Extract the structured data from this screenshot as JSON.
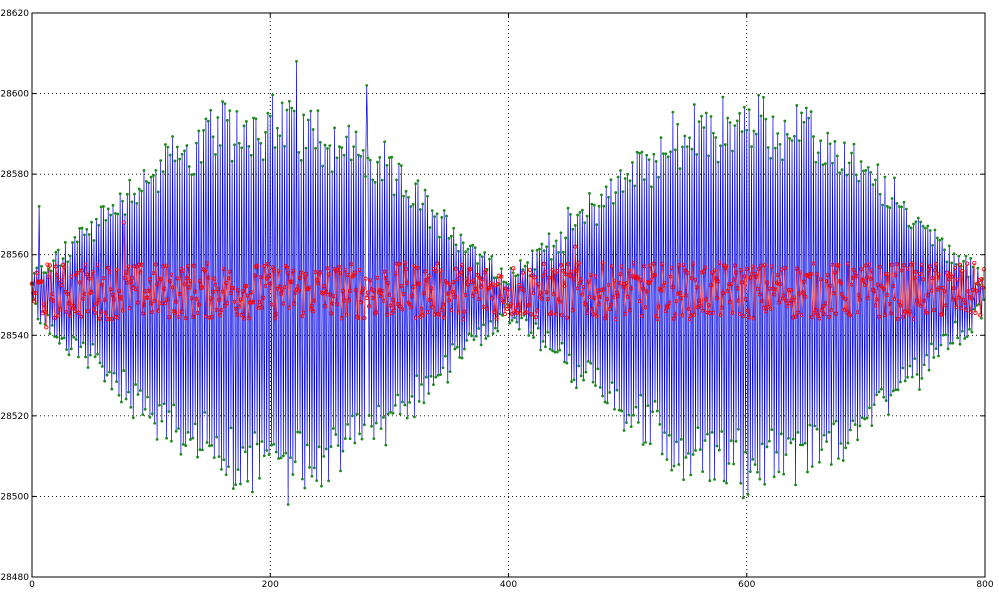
{
  "chart_data": {
    "type": "line",
    "title": "",
    "xlabel": "",
    "ylabel": "",
    "xlim": [
      0,
      800
    ],
    "ylim": [
      28480,
      28620
    ],
    "x_ticks": [
      "0",
      "200",
      "400",
      "600",
      "800"
    ],
    "y_ticks": [
      "28480",
      "28500",
      "28520",
      "28540",
      "28560",
      "28580",
      "28600",
      "28620"
    ],
    "grid": true,
    "legend": "none",
    "series_style": [
      {
        "role": "raw",
        "line_color": "#0000ee",
        "marker_color": "#1a8a1a",
        "marker": "dot"
      },
      {
        "role": "filtered",
        "line_color": "#ff3333",
        "marker_color": "#ff0000",
        "marker": "circle"
      }
    ],
    "series_description": {
      "raw": {
        "n_points": 800,
        "center": 28550,
        "pattern": "alternating oscillation with two amplitude envelopes (beats)",
        "envelope_peaks_x": [
          230,
          650
        ],
        "envelope_nulls_x": [
          0,
          400,
          800
        ],
        "max_amplitude": 45,
        "extremes": {
          "max_y": 28608,
          "max_x": 222,
          "min_y": 28498,
          "min_x": 215
        }
      },
      "filtered": {
        "n_points": 800,
        "center": 28551,
        "noise_range": [
          28542,
          28568
        ]
      }
    },
    "series": [
      {
        "values_sample_x": [
          0,
          25,
          50,
          80,
          120,
          160,
          200,
          222,
          260,
          300,
          350,
          400,
          450,
          500,
          550,
          600,
          650,
          700,
          750,
          800
        ],
        "values_sample_raw_y": [
          28556,
          28545,
          28555,
          28575,
          28525,
          28580,
          28590,
          28608,
          28585,
          28580,
          28530,
          28552,
          28551,
          28560,
          28530,
          28585,
          28600,
          28520,
          28565,
          28548
        ],
        "values_sample_filtered_y": [
          28555,
          28552,
          28549,
          28568,
          28552,
          28550,
          28551,
          28553,
          28549,
          28551,
          28550,
          28552,
          28551,
          28552,
          28550,
          28551,
          28552,
          28550,
          28553,
          28551
        ]
      }
    ]
  }
}
